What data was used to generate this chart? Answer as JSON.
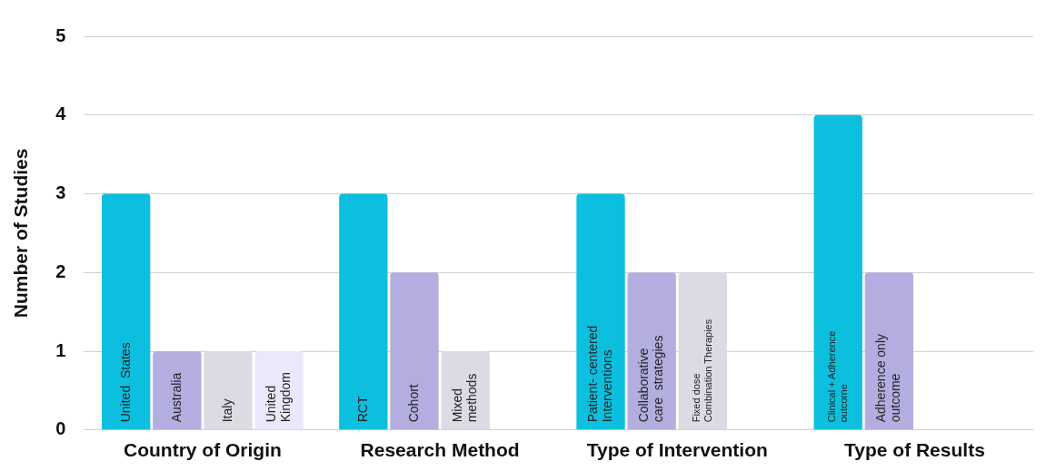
{
  "chart_data": {
    "type": "bar",
    "ylabel": "Number of Studies",
    "categories": [
      "Country of Origin",
      "Research Method",
      "Type of Intervention",
      "Type of Results"
    ],
    "series": [
      {
        "color": "#0dbfdf",
        "values": [
          3,
          3,
          3,
          4
        ],
        "value_labels": [
          "United  States",
          "RCT",
          "Patient- centered\nInterventions",
          "Clinical + Adherence\noutcome"
        ]
      },
      {
        "color": "#b3aedf",
        "values": [
          1,
          2,
          2,
          2
        ],
        "value_labels": [
          "Australia",
          "Cohort",
          "Collaborative\ncare  strategies",
          "Adherence only\noutcome"
        ]
      },
      {
        "color": "#dcdbe4",
        "values": [
          1,
          1,
          2,
          null
        ],
        "value_labels": [
          "Italy",
          "Mixed\nmethods",
          "Fixed dose\nCombination Therapies",
          null
        ]
      },
      {
        "color": "#e9e9fb",
        "values": [
          1,
          null,
          null,
          null
        ],
        "value_labels": [
          "United\nKingdom",
          null,
          null,
          null
        ]
      }
    ],
    "ylim": [
      0,
      5
    ],
    "yticks": [
      0,
      1,
      2,
      3,
      4,
      5
    ],
    "grid": "y",
    "legend": false
  }
}
